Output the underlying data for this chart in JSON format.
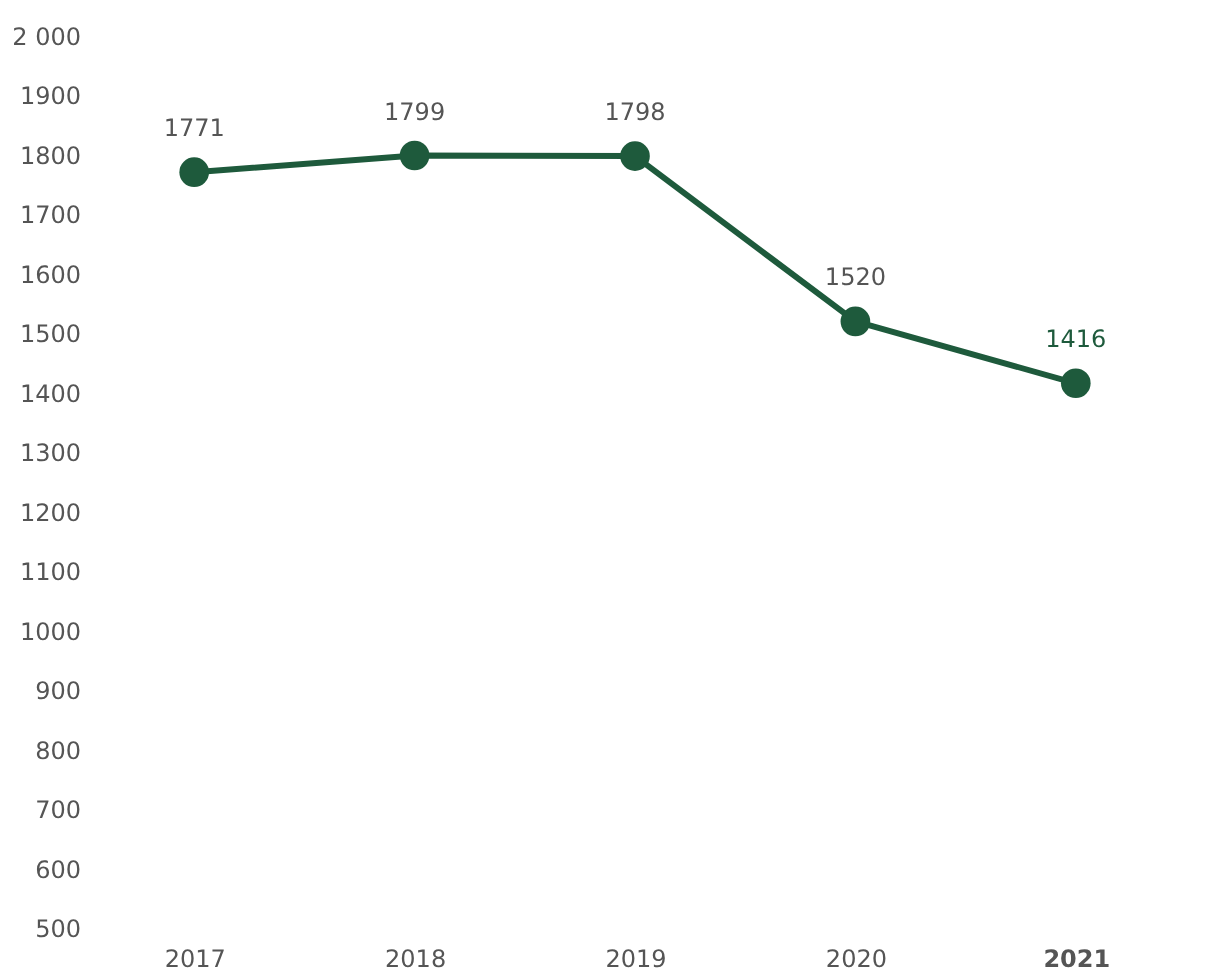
{
  "chart_data": {
    "type": "line",
    "categories": [
      "2017",
      "2018",
      "2019",
      "2020",
      "2021"
    ],
    "series": [
      {
        "color": "#1e5a3c",
        "values": [
          1771,
          1799,
          1798,
          1520,
          1416
        ]
      }
    ],
    "ylim": [
      500,
      2000
    ],
    "yticks": [
      500,
      600,
      700,
      800,
      900,
      1000,
      1100,
      1200,
      1300,
      1400,
      1500,
      1600,
      1700,
      1800,
      1900,
      {
        "value": 2000,
        "label": "2 000"
      }
    ],
    "data_labels": true,
    "marker": "circle",
    "line_style": "solid",
    "grid": false
  }
}
